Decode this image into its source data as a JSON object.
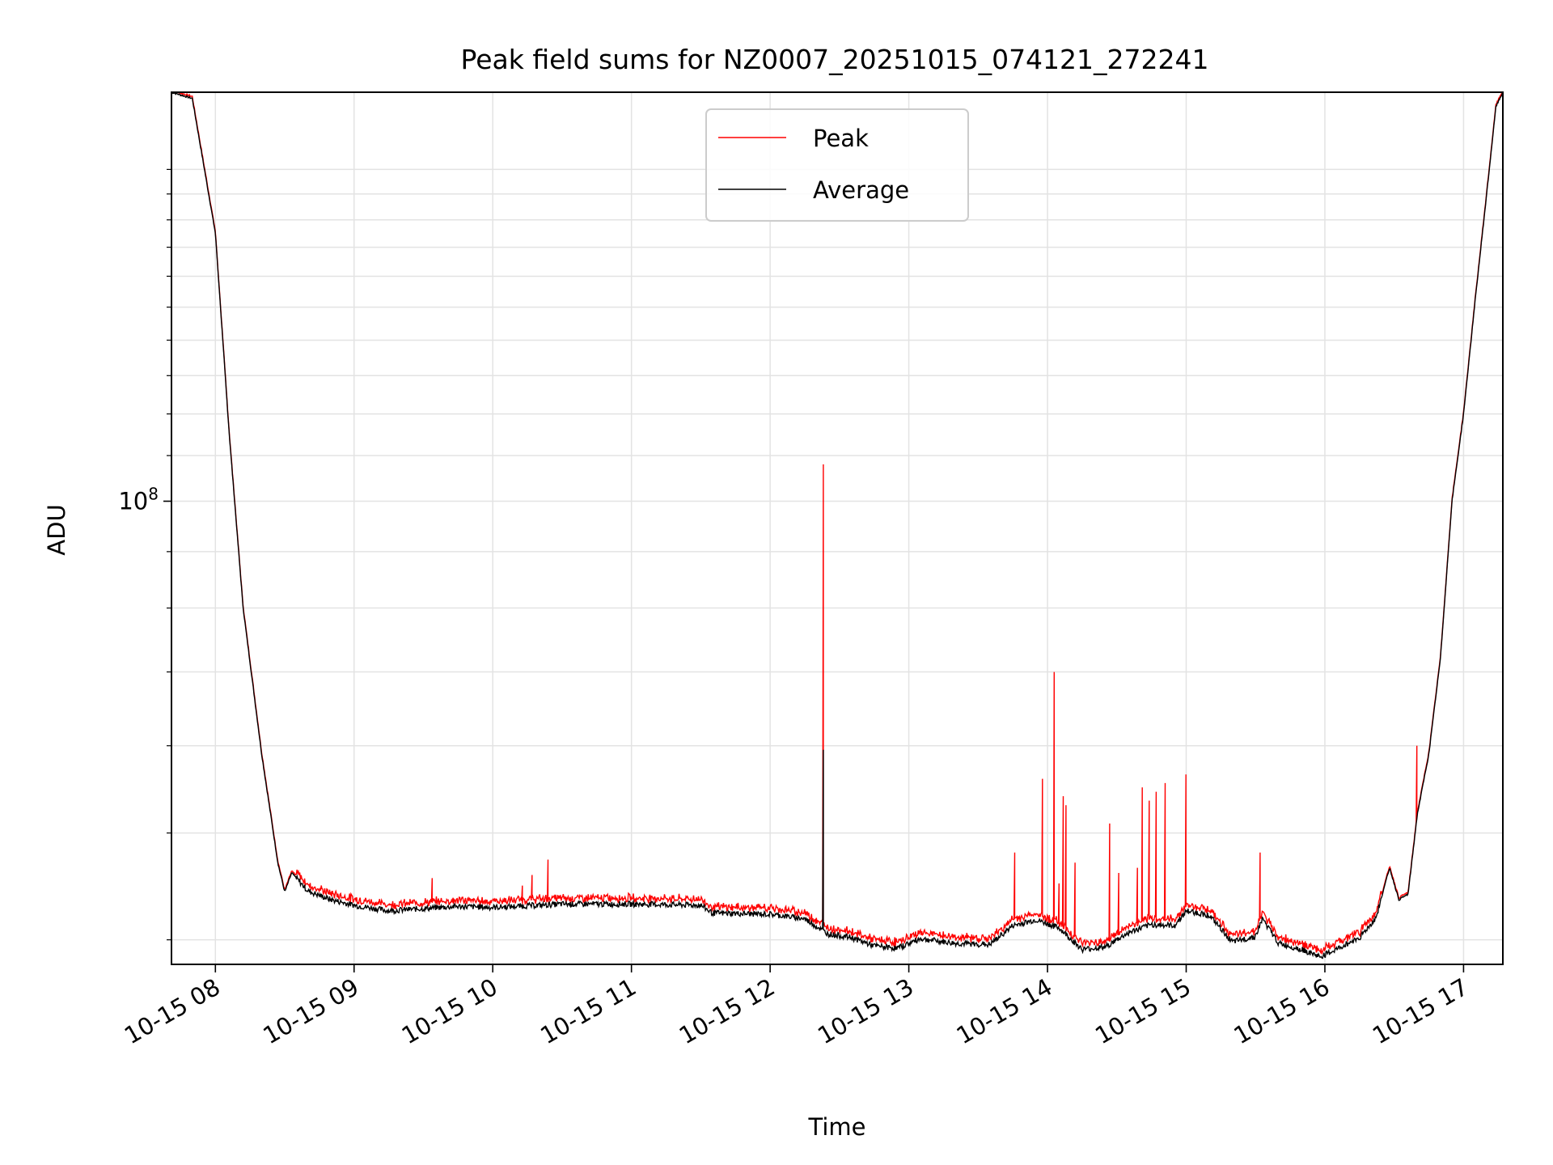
{
  "chart_data": {
    "type": "line",
    "title": "Peak field sums for NZ0007_20251015_074121_272241",
    "xlabel": "Time",
    "ylabel": "ADU",
    "y_scale": "log",
    "ylim": [
      38000000,
      235000000
    ],
    "y_tick_label": {
      "base": "10",
      "exp": "8",
      "value": 100000000
    },
    "x_range": [
      "2025-10-15 07:41",
      "2025-10-15 17:17"
    ],
    "x_ticks": [
      "10-15 08",
      "10-15 09",
      "10-15 10",
      "10-15 11",
      "10-15 12",
      "10-15 13",
      "10-15 14",
      "10-15 15",
      "10-15 16",
      "10-15 17"
    ],
    "grid": true,
    "legend_position": "upper center",
    "series": [
      {
        "name": "Peak",
        "color": "#ff0000"
      },
      {
        "name": "Average",
        "color": "#000000"
      }
    ],
    "average_profile": [
      [
        "2025-10-15 07:41",
        235000000
      ],
      [
        "2025-10-15 07:50",
        232000000
      ],
      [
        "2025-10-15 08:00",
        175000000
      ],
      [
        "2025-10-15 08:06",
        115000000
      ],
      [
        "2025-10-15 08:12",
        80000000
      ],
      [
        "2025-10-15 08:20",
        59000000
      ],
      [
        "2025-10-15 08:27",
        47000000
      ],
      [
        "2025-10-15 08:30",
        44200000
      ],
      [
        "2025-10-15 08:33",
        46000000
      ],
      [
        "2025-10-15 08:40",
        44300000
      ],
      [
        "2025-10-15 08:50",
        43500000
      ],
      [
        "2025-10-15 09:00",
        43000000
      ],
      [
        "2025-10-15 09:15",
        42500000
      ],
      [
        "2025-10-15 09:30",
        42700000
      ],
      [
        "2025-10-15 09:45",
        42900000
      ],
      [
        "2025-10-15 10:00",
        42800000
      ],
      [
        "2025-10-15 10:30",
        43100000
      ],
      [
        "2025-10-15 11:00",
        43100000
      ],
      [
        "2025-10-15 11:30",
        43000000
      ],
      [
        "2025-10-15 11:35",
        42300000
      ],
      [
        "2025-10-15 12:00",
        42200000
      ],
      [
        "2025-10-15 12:15",
        41800000
      ],
      [
        "2025-10-15 12:25",
        40500000
      ],
      [
        "2025-10-15 12:35",
        40200000
      ],
      [
        "2025-10-15 12:45",
        39500000
      ],
      [
        "2025-10-15 12:55",
        39300000
      ],
      [
        "2025-10-15 13:05",
        40100000
      ],
      [
        "2025-10-15 13:20",
        39700000
      ],
      [
        "2025-10-15 13:35",
        39600000
      ],
      [
        "2025-10-15 13:45",
        41200000
      ],
      [
        "2025-10-15 13:55",
        41700000
      ],
      [
        "2025-10-15 14:05",
        41000000
      ],
      [
        "2025-10-15 14:15",
        39200000
      ],
      [
        "2025-10-15 14:25",
        39400000
      ],
      [
        "2025-10-15 14:35",
        40600000
      ],
      [
        "2025-10-15 14:45",
        41300000
      ],
      [
        "2025-10-15 14:55",
        41200000
      ],
      [
        "2025-10-15 15:00",
        42500000
      ],
      [
        "2025-10-15 15:10",
        42100000
      ],
      [
        "2025-10-15 15:20",
        39800000
      ],
      [
        "2025-10-15 15:30",
        40300000
      ],
      [
        "2025-10-15 15:33",
        41800000
      ],
      [
        "2025-10-15 15:40",
        39700000
      ],
      [
        "2025-10-15 15:50",
        39200000
      ],
      [
        "2025-10-15 15:58",
        38600000
      ],
      [
        "2025-10-15 16:05",
        39200000
      ],
      [
        "2025-10-15 16:15",
        40200000
      ],
      [
        "2025-10-15 16:22",
        41800000
      ],
      [
        "2025-10-15 16:28",
        46500000
      ],
      [
        "2025-10-15 16:32",
        43500000
      ],
      [
        "2025-10-15 16:36",
        44000000
      ],
      [
        "2025-10-15 16:40",
        52000000
      ],
      [
        "2025-10-15 16:45",
        59000000
      ],
      [
        "2025-10-15 16:50",
        72000000
      ],
      [
        "2025-10-15 16:55",
        100000000
      ],
      [
        "2025-10-15 17:00",
        120000000
      ],
      [
        "2025-10-15 17:05",
        152000000
      ],
      [
        "2025-10-15 17:10",
        190000000
      ],
      [
        "2025-10-15 17:14",
        228000000
      ],
      [
        "2025-10-15 17:17",
        235000000
      ]
    ],
    "peak_spikes": [
      [
        "2025-10-15 09:34",
        45500000
      ],
      [
        "2025-10-15 10:13",
        44800000
      ],
      [
        "2025-10-15 10:17",
        45800000
      ],
      [
        "2025-10-15 10:24",
        47300000
      ],
      [
        "2025-10-15 12:23",
        108000000
      ],
      [
        "2025-10-15 13:46",
        48000000
      ],
      [
        "2025-10-15 13:58",
        56000000
      ],
      [
        "2025-10-15 14:03",
        70000000
      ],
      [
        "2025-10-15 14:05",
        45000000
      ],
      [
        "2025-10-15 14:07",
        54000000
      ],
      [
        "2025-10-15 14:08",
        53000000
      ],
      [
        "2025-10-15 14:12",
        47000000
      ],
      [
        "2025-10-15 14:27",
        51000000
      ],
      [
        "2025-10-15 14:31",
        46000000
      ],
      [
        "2025-10-15 14:39",
        46500000
      ],
      [
        "2025-10-15 14:41",
        55000000
      ],
      [
        "2025-10-15 14:44",
        53500000
      ],
      [
        "2025-10-15 14:47",
        54500000
      ],
      [
        "2025-10-15 14:51",
        55500000
      ],
      [
        "2025-10-15 15:00",
        56500000
      ],
      [
        "2025-10-15 15:32",
        48000000
      ],
      [
        "2025-10-15 16:40",
        60000000
      ]
    ],
    "average_spikes": [
      [
        "2025-10-15 12:23",
        59500000
      ]
    ]
  }
}
